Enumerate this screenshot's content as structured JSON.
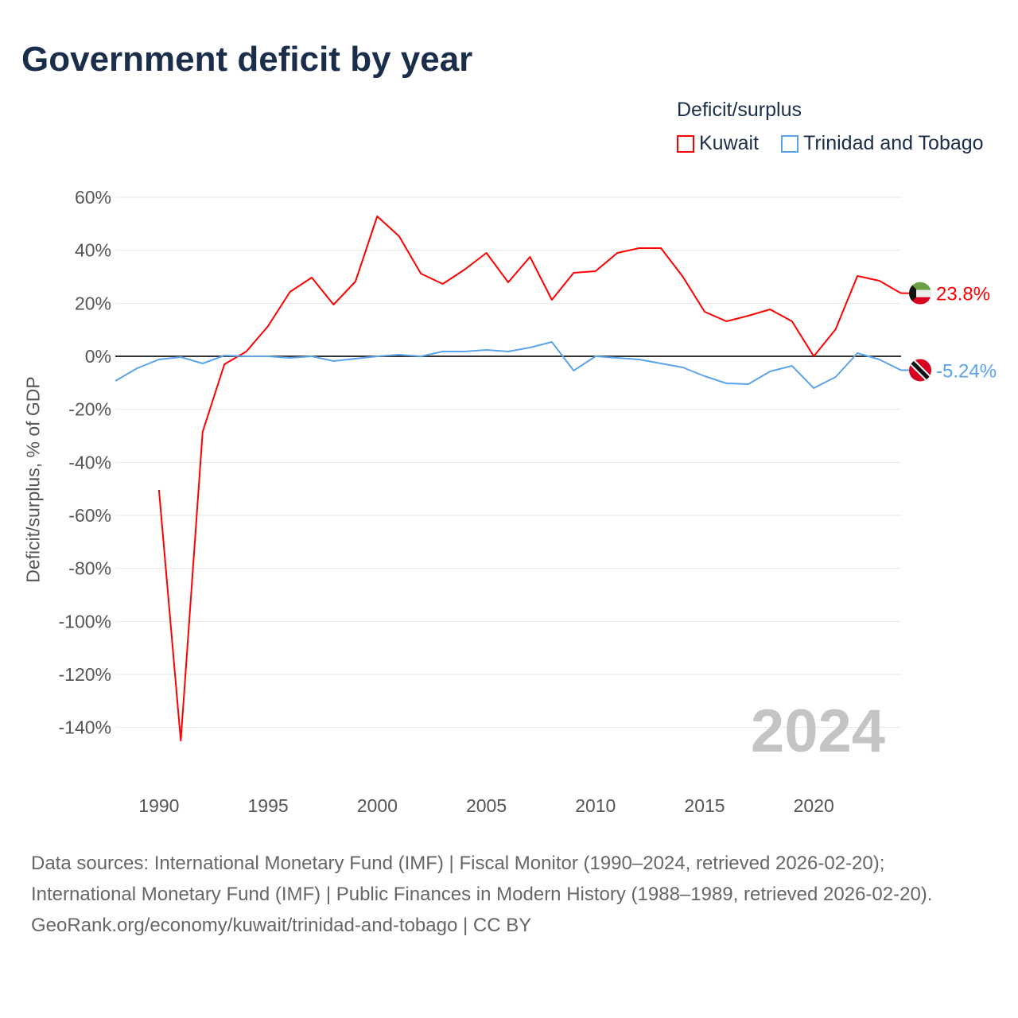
{
  "chart_data": {
    "type": "line",
    "title": "Government deficit by year",
    "ylabel": "Deficit/surplus, % of GDP",
    "xlabel": "",
    "legend_title": "Deficit/surplus",
    "legend_position": "top-right",
    "xlim": [
      1988,
      2024
    ],
    "ylim": [
      -150,
      60
    ],
    "grid": true,
    "y_ticks": [
      60,
      40,
      20,
      0,
      -20,
      -40,
      -60,
      -80,
      -100,
      -120,
      -140
    ],
    "y_tick_labels": [
      "60%",
      "40%",
      "20%",
      "0%",
      "-20%",
      "-40%",
      "-60%",
      "-80%",
      "-100%",
      "-120%",
      "-140%"
    ],
    "x_ticks": [
      1990,
      1995,
      2000,
      2005,
      2010,
      2015,
      2020
    ],
    "x_tick_labels": [
      "1990",
      "1995",
      "2000",
      "2005",
      "2010",
      "2015",
      "2020"
    ],
    "current_year": "2024",
    "series": [
      {
        "name": "Kuwait",
        "color": "#ff0000",
        "end_label": "23.8%",
        "x": [
          1990,
          1991,
          1992,
          1993,
          1994,
          1995,
          1996,
          1997,
          1998,
          1999,
          2000,
          2001,
          2002,
          2003,
          2004,
          2005,
          2006,
          2007,
          2008,
          2009,
          2010,
          2011,
          2012,
          2013,
          2014,
          2015,
          2016,
          2017,
          2018,
          2019,
          2020,
          2021,
          2022,
          2023,
          2024
        ],
        "values": [
          -50.4,
          -145,
          -28.5,
          -3,
          1.8,
          11.4,
          24.3,
          29.7,
          19.5,
          28.2,
          52.8,
          45.3,
          31.2,
          27.3,
          32.7,
          39,
          27.9,
          37.5,
          21.3,
          31.5,
          32.1,
          39,
          40.8,
          40.8,
          30,
          16.8,
          13.2,
          15.3,
          17.7,
          13.2,
          0,
          10.2,
          30.3,
          28.5,
          23.8
        ]
      },
      {
        "name": "Trinidad and Tobago",
        "color": "#5ba4ec",
        "end_label": "-5.24%",
        "x": [
          1988,
          1989,
          1990,
          1991,
          1992,
          1993,
          1994,
          1995,
          1996,
          1997,
          1998,
          1999,
          2000,
          2001,
          2002,
          2003,
          2004,
          2005,
          2006,
          2007,
          2008,
          2009,
          2010,
          2011,
          2012,
          2013,
          2014,
          2015,
          2016,
          2017,
          2018,
          2019,
          2020,
          2021,
          2022,
          2023,
          2024
        ],
        "values": [
          -9.3,
          -4.5,
          -1.2,
          -0.3,
          -2.7,
          0.3,
          0,
          0,
          -0.6,
          0,
          -1.8,
          -0.9,
          0,
          0.6,
          0,
          1.8,
          1.8,
          2.4,
          1.8,
          3.3,
          5.4,
          -5.4,
          0,
          -0.6,
          -1.2,
          -2.7,
          -4.2,
          -7.5,
          -10.2,
          -10.5,
          -5.7,
          -3.6,
          -12,
          -7.8,
          1.2,
          -1.2,
          -5.24
        ]
      }
    ]
  },
  "footer": {
    "sources": "Data sources: International Monetary Fund (IMF) | Fiscal Monitor (1990–2024, retrieved 2026-02-20); International Monetary Fund (IMF) | Public Finances in Modern History (1988–1989, retrieved 2026-02-20).",
    "credit": "GeoRank.org/economy/kuwait/trinidad-and-tobago | CC BY"
  }
}
